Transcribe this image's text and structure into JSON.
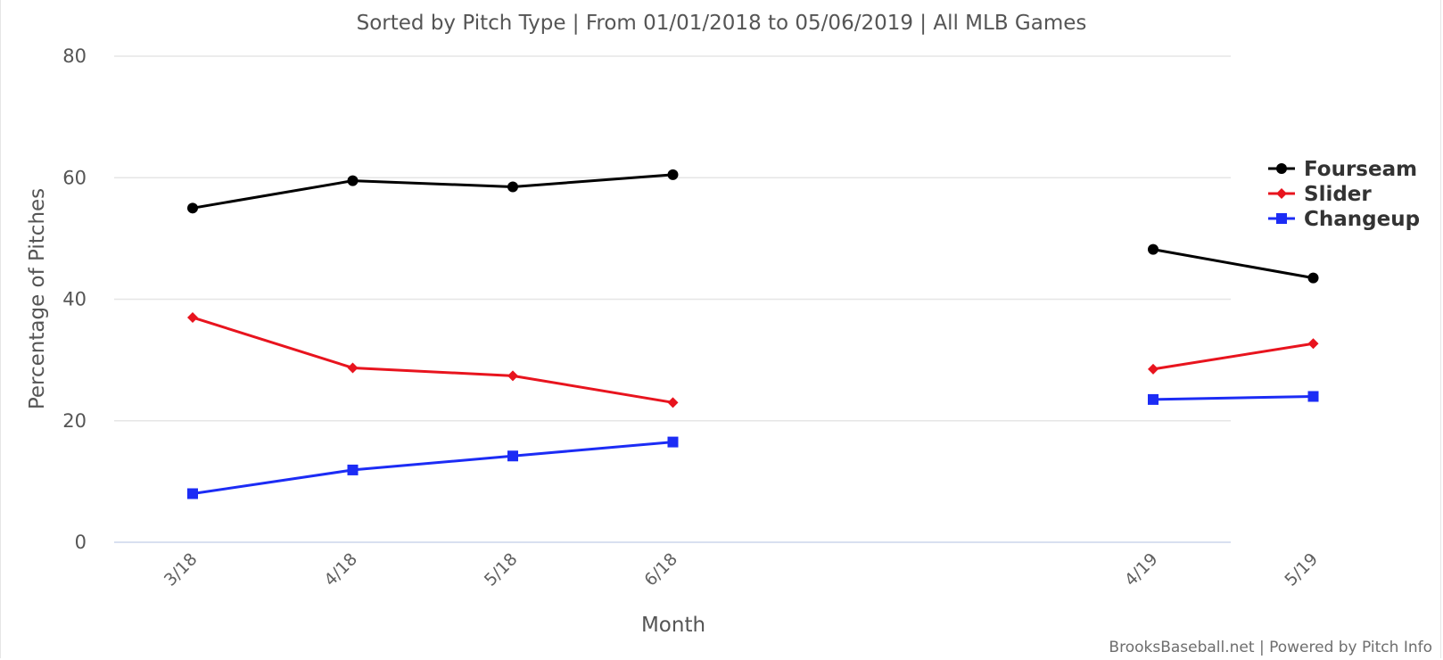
{
  "chart_data": {
    "type": "line",
    "title": "Sorted by Pitch Type | From 01/01/2018 to 05/06/2019 | All MLB Games",
    "xlabel": "Month",
    "ylabel": "Percentage of Pitches",
    "ylim": [
      0,
      80
    ],
    "yticks": [
      "0",
      "20",
      "40",
      "60",
      "80"
    ],
    "categories": [
      "3/18",
      "4/18",
      "5/18",
      "6/18",
      "",
      "",
      "4/19",
      "5/19"
    ],
    "grid": true,
    "legend": "right",
    "series": [
      {
        "name": "Fourseam",
        "color": "#000000",
        "marker": "circle",
        "values": [
          55.0,
          59.5,
          58.5,
          60.5,
          null,
          null,
          48.2,
          43.5
        ]
      },
      {
        "name": "Slider",
        "color": "#e8141e",
        "marker": "diamond",
        "values": [
          37.0,
          28.7,
          27.4,
          23.0,
          null,
          null,
          28.5,
          32.7
        ]
      },
      {
        "name": "Changeup",
        "color": "#1c2cf5",
        "marker": "square",
        "values": [
          8.0,
          11.9,
          14.2,
          16.5,
          null,
          null,
          23.5,
          24.0
        ]
      }
    ]
  },
  "credits": "BrooksBaseball.net | Powered by Pitch Info"
}
